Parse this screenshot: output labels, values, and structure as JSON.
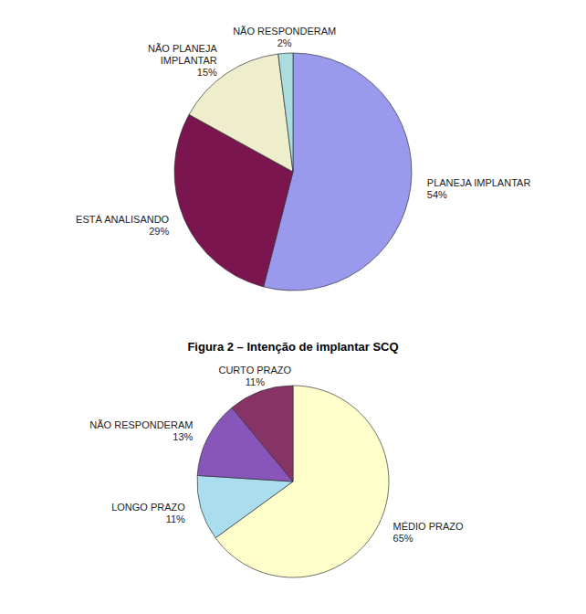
{
  "title": "Figura 2 – Intenção de implantar SCQ",
  "chart_data": [
    {
      "type": "pie",
      "categories": [
        "PLANEJA IMPLANTAR",
        "ESTÁ ANALISANDO",
        "NÃO PLANEJA\nIMPLANTAR",
        "NÃO RESPONDERAM"
      ],
      "values": [
        54,
        29,
        15,
        2
      ],
      "value_labels": [
        "54%",
        "29%",
        "15%",
        "2%"
      ],
      "colors": [
        "#9999ee",
        "#7a1550",
        "#eeeecc",
        "#aadddd"
      ],
      "data_labels": true
    },
    {
      "type": "pie",
      "categories": [
        "MÉDIO PRAZO",
        "LONGO PRAZO",
        "NÃO RESPONDERAM",
        "CURTO PRAZO"
      ],
      "values": [
        65,
        11,
        13,
        11
      ],
      "value_labels": [
        "65%",
        "11%",
        "13%",
        "11%"
      ],
      "colors": [
        "#ffffcc",
        "#aaddee",
        "#8855bb",
        "#883366"
      ],
      "data_labels": true
    }
  ]
}
